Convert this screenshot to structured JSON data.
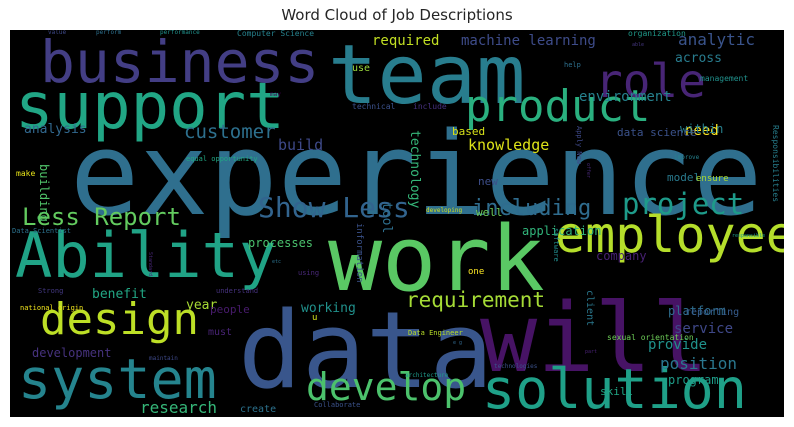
{
  "title": "Word Cloud of Job Descriptions",
  "chart_data": {
    "type": "wordcloud",
    "background": "#000000",
    "colormap": "viridis",
    "words": [
      {
        "text": "experience",
        "weight": 100,
        "color": "#2f6f8e"
      },
      {
        "text": "data",
        "weight": 92,
        "color": "#39568c"
      },
      {
        "text": "work",
        "weight": 88,
        "color": "#5ac864"
      },
      {
        "text": "team",
        "weight": 86,
        "color": "#287d8e"
      },
      {
        "text": "will",
        "weight": 80,
        "color": "#471365"
      },
      {
        "text": "support",
        "weight": 72,
        "color": "#21a685"
      },
      {
        "text": "business",
        "weight": 66,
        "color": "#433e85"
      },
      {
        "text": "Ability",
        "weight": 63,
        "color": "#20a386"
      },
      {
        "text": "system",
        "weight": 58,
        "color": "#25848e"
      },
      {
        "text": "solution",
        "weight": 55,
        "color": "#1fa088"
      },
      {
        "text": "employee",
        "weight": 52,
        "color": "#b5de2b"
      },
      {
        "text": "product",
        "weight": 50,
        "color": "#2ab07f"
      },
      {
        "text": "design",
        "weight": 48,
        "color": "#bddf26"
      },
      {
        "text": "role",
        "weight": 46,
        "color": "#482576"
      },
      {
        "text": "develop",
        "weight": 40,
        "color": "#4cc26c"
      },
      {
        "text": "Show Less",
        "weight": 33,
        "color": "#32648e"
      },
      {
        "text": "project",
        "weight": 30,
        "color": "#1e9b8a"
      },
      {
        "text": "Less Report",
        "weight": 26,
        "color": "#63cb5f"
      },
      {
        "text": "including",
        "weight": 24,
        "color": "#2f6c8e"
      },
      {
        "text": "requirement",
        "weight": 23,
        "color": "#a5db36"
      },
      {
        "text": "customer",
        "weight": 21,
        "color": "#2d708e"
      },
      {
        "text": "analytic",
        "weight": 18,
        "color": "#3a548c"
      },
      {
        "text": "position",
        "weight": 17,
        "color": "#2a778e"
      },
      {
        "text": "research",
        "weight": 17,
        "color": "#35b779"
      },
      {
        "text": "knowledge",
        "weight": 15,
        "color": "#dde318"
      },
      {
        "text": "build",
        "weight": 15,
        "color": "#3e4989"
      },
      {
        "text": "required",
        "weight": 14,
        "color": "#c2df23"
      },
      {
        "text": "machine learning",
        "weight": 14,
        "color": "#3e4c8a"
      },
      {
        "text": "environment",
        "weight": 13,
        "color": "#26828e"
      },
      {
        "text": "technology",
        "weight": 13,
        "color": "#35b779"
      },
      {
        "text": "service",
        "weight": 13,
        "color": "#3f4889"
      },
      {
        "text": "provide",
        "weight": 13,
        "color": "#20928c"
      },
      {
        "text": "benefit",
        "weight": 12,
        "color": "#22a785"
      },
      {
        "text": "analysis",
        "weight": 12,
        "color": "#31688e"
      },
      {
        "text": "across",
        "weight": 12,
        "color": "#287c8e"
      },
      {
        "text": "need",
        "weight": 12,
        "color": "#fde725"
      },
      {
        "text": "tool",
        "weight": 12,
        "color": "#2e6f8e"
      },
      {
        "text": "working",
        "weight": 12,
        "color": "#21918c"
      },
      {
        "text": "year",
        "weight": 11,
        "color": "#a8db34"
      },
      {
        "text": "development",
        "weight": 11,
        "color": "#46327e"
      },
      {
        "text": "within",
        "weight": 11,
        "color": "#27808e"
      },
      {
        "text": "data science",
        "weight": 10,
        "color": "#3b528b"
      },
      {
        "text": "well",
        "weight": 10,
        "color": "#6ccd5a"
      },
      {
        "text": "processes",
        "weight": 10,
        "color": "#4ac16d"
      },
      {
        "text": "building",
        "weight": 10,
        "color": "#50c46a"
      },
      {
        "text": "application",
        "weight": 10,
        "color": "#31b57b"
      },
      {
        "text": "company",
        "weight": 10,
        "color": "#482173"
      },
      {
        "text": "platform",
        "weight": 10,
        "color": "#2e6d8e"
      },
      {
        "text": "program",
        "weight": 10,
        "color": "#1e9d89"
      },
      {
        "text": "people",
        "weight": 9,
        "color": "#481b6d"
      },
      {
        "text": "skill",
        "weight": 9,
        "color": "#21a685"
      },
      {
        "text": "model",
        "weight": 9,
        "color": "#297a8e"
      },
      {
        "text": "based",
        "weight": 9,
        "color": "#d8e219"
      },
      {
        "text": "new",
        "weight": 9,
        "color": "#3d4e8a"
      },
      {
        "text": "create",
        "weight": 8,
        "color": "#2c728e"
      },
      {
        "text": "must",
        "weight": 8,
        "color": "#482475"
      },
      {
        "text": "use",
        "weight": 8,
        "color": "#9bd93c"
      },
      {
        "text": "reporting",
        "weight": 8,
        "color": "#365c8d"
      },
      {
        "text": "client",
        "weight": 8,
        "color": "#2a788e"
      },
      {
        "text": "ensure",
        "weight": 7,
        "color": "#addc30"
      },
      {
        "text": "information",
        "weight": 7,
        "color": "#3b528b"
      },
      {
        "text": "u",
        "weight": 7,
        "color": "#d2e21b"
      },
      {
        "text": "one",
        "weight": 6,
        "color": "#fde725"
      },
      {
        "text": "make",
        "weight": 6,
        "color": "#e7e419"
      },
      {
        "text": "Responsibilities",
        "weight": 6,
        "color": "#277f8e"
      },
      {
        "text": "Computer Science",
        "weight": 6,
        "color": "#26828e"
      },
      {
        "text": "sexual orientation",
        "weight": 6,
        "color": "#6ece58"
      },
      {
        "text": "technical",
        "weight": 6,
        "color": "#3b518b"
      },
      {
        "text": "include",
        "weight": 6,
        "color": "#46307e"
      },
      {
        "text": "management",
        "weight": 6,
        "color": "#21918c"
      },
      {
        "text": "organization",
        "weight": 6,
        "color": "#1f9a8a"
      },
      {
        "text": "equal opportunity",
        "weight": 5,
        "color": "#22a884"
      },
      {
        "text": "Collaborate",
        "weight": 5,
        "color": "#3b528b"
      },
      {
        "text": "help",
        "weight": 5,
        "color": "#2d708e"
      },
      {
        "text": "Apply Now",
        "weight": 5,
        "color": "#3e4989"
      },
      {
        "text": "Python",
        "weight": 5,
        "color": "#2c728e"
      },
      {
        "text": "Strong",
        "weight": 5,
        "color": "#443983"
      },
      {
        "text": "national origin",
        "weight": 5,
        "color": "#f1e51d"
      },
      {
        "text": "Data Engineer",
        "weight": 5,
        "color": "#b8de29"
      },
      {
        "text": "Data Scientist",
        "weight": 5,
        "color": "#2c728e"
      },
      {
        "text": "understand",
        "weight": 5,
        "color": "#46327e"
      },
      {
        "text": "using",
        "weight": 5,
        "color": "#482878"
      },
      {
        "text": "developing",
        "weight": 5,
        "color": "#d0e11c"
      },
      {
        "text": "software",
        "weight": 5,
        "color": "#228c8d"
      },
      {
        "text": "performance",
        "weight": 4,
        "color": "#20928c"
      },
      {
        "text": "perform",
        "weight": 4,
        "color": "#2d708e"
      },
      {
        "text": "value",
        "weight": 4,
        "color": "#3e4989"
      },
      {
        "text": "may",
        "weight": 4,
        "color": "#440154"
      },
      {
        "text": "individual",
        "weight": 4,
        "color": "#2c738e"
      },
      {
        "text": "improve",
        "weight": 4,
        "color": "#26828e"
      },
      {
        "text": "able",
        "weight": 4,
        "color": "#453781"
      },
      {
        "text": "offer",
        "weight": 4,
        "color": "#482878"
      },
      {
        "text": "maintain",
        "weight": 4,
        "color": "#3e4989"
      },
      {
        "text": "architecture",
        "weight": 4,
        "color": "#1f9a8a"
      },
      {
        "text": "technologies",
        "weight": 4,
        "color": "#3b528b"
      },
      {
        "text": "part",
        "weight": 4,
        "color": "#482173"
      },
      {
        "text": "etc",
        "weight": 3,
        "color": "#2c728e"
      },
      {
        "text": "e g",
        "weight": 3,
        "color": "#31688e"
      },
      {
        "text": "Standard",
        "weight": 3,
        "color": "#482677"
      },
      {
        "text": "responsible",
        "weight": 3,
        "color": "#1e9d89"
      }
    ]
  }
}
